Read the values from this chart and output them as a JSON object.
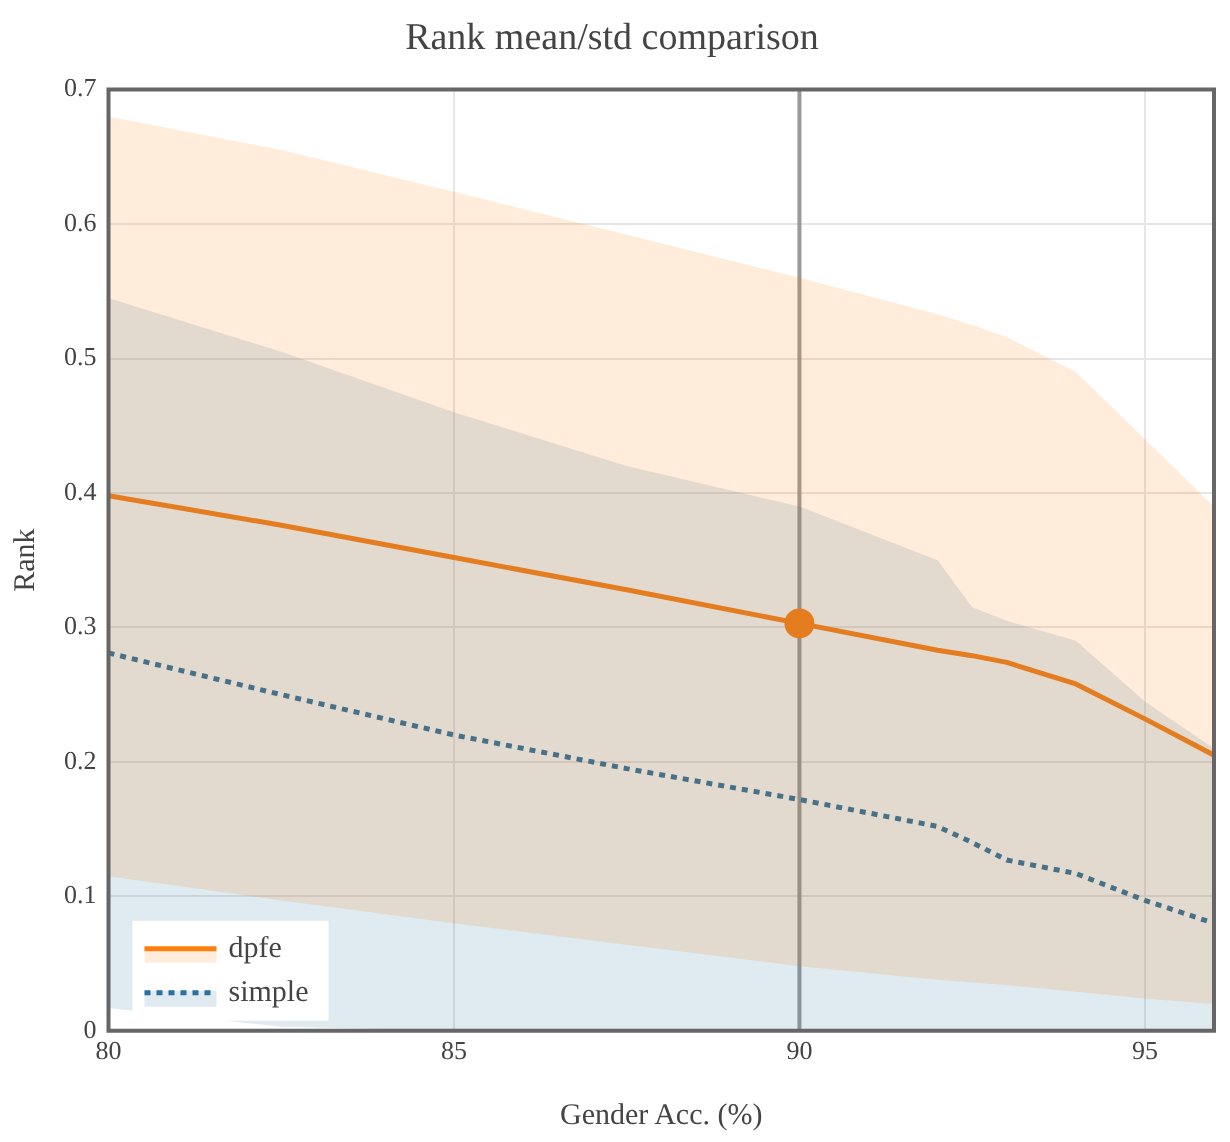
{
  "chart_data": {
    "type": "line",
    "title": "Rank mean/std comparison",
    "xlabel": "Gender Acc. (%)",
    "ylabel": "Rank",
    "x": [
      80,
      82.5,
      85,
      87.5,
      90,
      92,
      92.5,
      93,
      94,
      95,
      96
    ],
    "series": [
      {
        "name": "dpfe",
        "color": "#ff7f0e",
        "line_style": "solid",
        "values": [
          0.398,
          0.376,
          0.352,
          0.328,
          0.303,
          0.283,
          0.279,
          0.274,
          0.258,
          0.232,
          0.205
        ],
        "lower": [
          0.115,
          0.097,
          0.08,
          0.064,
          0.048,
          0.038,
          0.036,
          0.034,
          0.029,
          0.024,
          0.02
        ],
        "upper": [
          0.68,
          0.655,
          0.624,
          0.592,
          0.56,
          0.533,
          0.525,
          0.516,
          0.49,
          0.44,
          0.39
        ]
      },
      {
        "name": "simple",
        "color": "#2a6f9e",
        "line_style": "dotted",
        "values": [
          0.281,
          0.25,
          0.22,
          0.195,
          0.172,
          0.152,
          0.14,
          0.127,
          0.117,
          0.097,
          0.08
        ],
        "lower": [
          0.017,
          0.003,
          0,
          0,
          0,
          0,
          0,
          0,
          0,
          0,
          0
        ],
        "upper": [
          0.545,
          0.505,
          0.46,
          0.42,
          0.39,
          0.35,
          0.315,
          0.305,
          0.29,
          0.245,
          0.21
        ]
      },
      {
        "type": "scatter",
        "color": "#ff7f0e",
        "marker": "circle",
        "x": [
          90
        ],
        "values": [
          0.303
        ]
      }
    ],
    "xlim": [
      80,
      96
    ],
    "xticks": [
      80,
      85,
      90,
      95
    ],
    "ylim": [
      0,
      0.7
    ],
    "yticks": [
      0,
      0.1,
      0.2,
      0.3,
      0.4,
      0.5,
      0.6,
      0.7
    ],
    "ref_lines": [
      {
        "axis": "x",
        "value": 90,
        "color": "#999999"
      }
    ],
    "grid": true,
    "legend": "bottom left",
    "marker": "none"
  }
}
